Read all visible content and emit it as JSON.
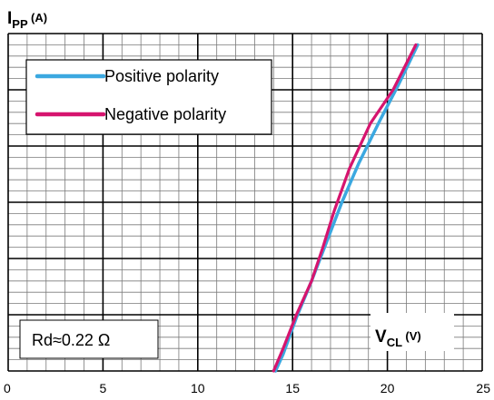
{
  "chart_data": {
    "type": "line",
    "y_axis_title": {
      "main": "I",
      "sub": "PP",
      "unit": " (A)"
    },
    "x_axis_title": {
      "main": "V",
      "sub": "CL",
      "unit": " (V)"
    },
    "xlim": [
      0,
      25
    ],
    "x_ticks": [
      0,
      5,
      10,
      15,
      20,
      25
    ],
    "x_tick_labels": [
      "0",
      "5",
      "10",
      "15",
      "20",
      "25"
    ],
    "ylim": [
      0,
      60
    ],
    "y_major_divisions": 6,
    "y_minor_per_major": 5,
    "x_minor_per_major": 5,
    "grid": true,
    "legend_placement": "top-left",
    "annotation": "Rd≈0.22 Ω",
    "series": [
      {
        "name": "Positive polarity",
        "color": "#3BA8E0",
        "points": [
          [
            14.1,
            0
          ],
          [
            14.5,
            3
          ],
          [
            15.2,
            9.5
          ],
          [
            16.0,
            16
          ],
          [
            16.8,
            23
          ],
          [
            17.6,
            30
          ],
          [
            18.5,
            37
          ],
          [
            19.6,
            44.5
          ],
          [
            20.6,
            51
          ],
          [
            21.6,
            58
          ]
        ]
      },
      {
        "name": "Negative polarity",
        "color": "#D6146E",
        "points": [
          [
            14.0,
            0
          ],
          [
            14.5,
            4
          ],
          [
            15.2,
            10
          ],
          [
            16.0,
            16
          ],
          [
            16.6,
            22
          ],
          [
            17.2,
            28.5
          ],
          [
            18.0,
            36
          ],
          [
            19.1,
            44
          ],
          [
            20.3,
            50
          ],
          [
            21.5,
            58
          ]
        ]
      }
    ]
  }
}
